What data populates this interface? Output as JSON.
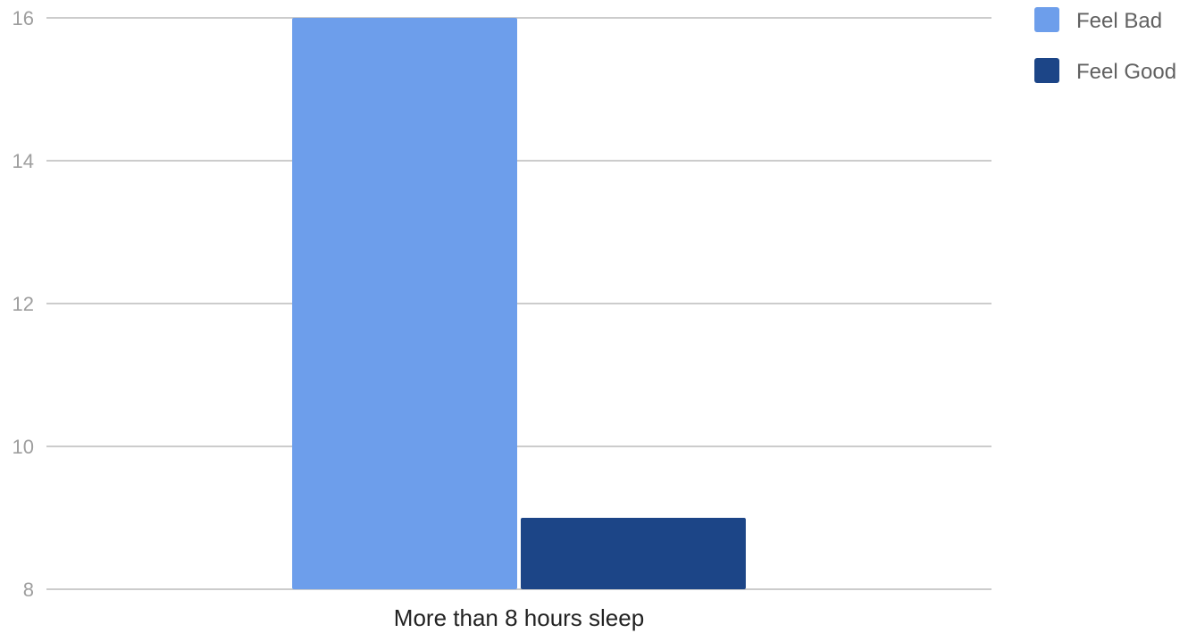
{
  "chart_data": {
    "type": "bar",
    "categories": [
      "More than 8 hours sleep"
    ],
    "series": [
      {
        "name": "Feel Bad",
        "values": [
          16
        ],
        "color": "#6d9eeb"
      },
      {
        "name": "Feel Good",
        "values": [
          9
        ],
        "color": "#1c4587"
      }
    ],
    "ylim": [
      8,
      16
    ],
    "yticks": [
      "8",
      "10",
      "12",
      "14",
      "16"
    ],
    "grid": true,
    "legend_position": "top-right"
  }
}
